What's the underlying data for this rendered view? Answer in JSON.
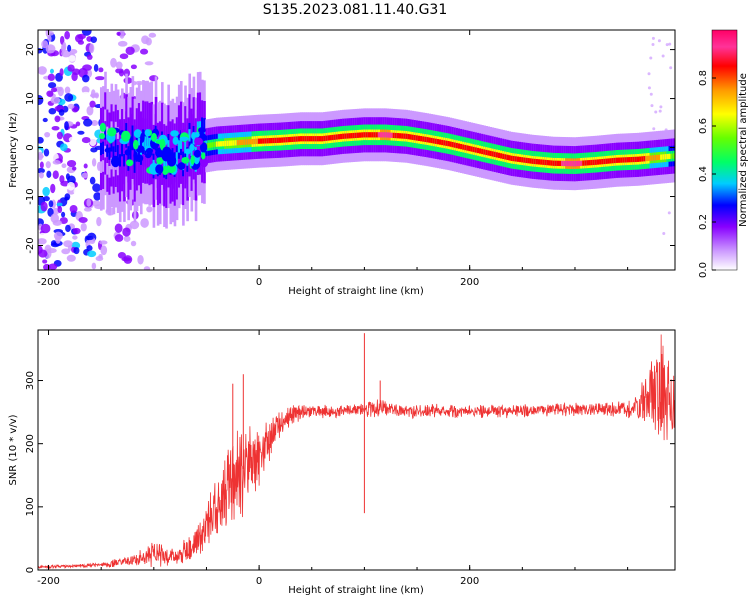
{
  "figure": {
    "title": "S135.2023.081.11.40.G31"
  },
  "chart_data": [
    {
      "type": "heatmap",
      "xlabel": "Height of straight line (km)",
      "ylabel": "Frequency (Hz)",
      "xlim": [
        -210,
        395
      ],
      "ylim": [
        -25,
        24
      ],
      "x_ticks": [
        -200,
        0,
        200
      ],
      "y_ticks": [
        -20,
        -10,
        0,
        10,
        20
      ],
      "colorbar": {
        "label": "Normalized spectral amplitude",
        "range": [
          0,
          1
        ],
        "ticks": [
          "0.0",
          "0.2",
          "0.4",
          "0.6",
          "0.8"
        ],
        "tick_values": [
          0,
          0.2,
          0.4,
          0.6,
          0.8
        ],
        "colormap": [
          "#ffffff",
          "#cc99ff",
          "#8800ff",
          "#0000ff",
          "#00ccff",
          "#00ff66",
          "#66ff00",
          "#ffff00",
          "#ff9900",
          "#ff0000",
          "#ff3399",
          "#ff0066"
        ]
      },
      "ridge": {
        "x": [
          -150,
          -120,
          -100,
          -80,
          -60,
          -40,
          -20,
          0,
          20,
          40,
          60,
          80,
          100,
          120,
          140,
          160,
          180,
          200,
          220,
          240,
          260,
          280,
          300,
          320,
          340,
          360,
          380,
          395
        ],
        "freq": [
          0.5,
          0.0,
          -1.0,
          -1.0,
          0.0,
          0.7,
          1.0,
          1.3,
          1.5,
          1.8,
          1.8,
          2.3,
          2.6,
          2.6,
          2.3,
          1.6,
          0.8,
          -0.2,
          -1.2,
          -2.2,
          -2.8,
          -3.2,
          -3.3,
          -3.0,
          -2.6,
          -2.4,
          -2.0,
          -1.7
        ],
        "amplitude": [
          0.3,
          0.35,
          0.4,
          0.4,
          0.45,
          0.65,
          0.75,
          0.85,
          0.85,
          0.88,
          0.88,
          0.88,
          0.9,
          0.95,
          0.9,
          0.85,
          0.85,
          0.85,
          0.85,
          0.88,
          0.9,
          0.92,
          0.95,
          0.9,
          0.92,
          0.9,
          0.75,
          0.6
        ]
      },
      "noise_region_km": [
        -210,
        -100
      ]
    },
    {
      "type": "line",
      "color": "#ee3333",
      "xlabel": "Height of straight line (km)",
      "ylabel": "SNR (10 * v/v)",
      "xlim": [
        -210,
        395
      ],
      "ylim": [
        0,
        380
      ],
      "x_ticks": [
        -200,
        0,
        200
      ],
      "y_ticks": [
        0,
        100,
        200,
        300
      ],
      "series": [
        {
          "x": [
            -210,
            -180,
            -150,
            -120,
            -100,
            -80,
            -60,
            -50,
            -40,
            -30,
            -20,
            -10,
            0,
            10,
            20,
            30,
            40,
            60,
            80,
            100,
            110,
            120,
            140,
            160,
            200,
            250,
            300,
            350,
            360,
            370,
            380,
            385,
            390,
            395
          ],
          "values": [
            5,
            6,
            8,
            15,
            25,
            20,
            40,
            70,
            100,
            130,
            150,
            170,
            180,
            210,
            230,
            245,
            250,
            252,
            252,
            255,
            260,
            255,
            250,
            252,
            252,
            252,
            255,
            255,
            260,
            270,
            280,
            275,
            265,
            240
          ],
          "spread": [
            3,
            3,
            5,
            10,
            25,
            15,
            30,
            45,
            60,
            80,
            90,
            70,
            60,
            40,
            25,
            20,
            15,
            12,
            12,
            12,
            25,
            15,
            12,
            12,
            12,
            12,
            12,
            15,
            25,
            60,
            100,
            100,
            80,
            60
          ]
        }
      ],
      "spikes": [
        {
          "x": -25,
          "value": 295
        },
        {
          "x": -15,
          "value": 310
        },
        {
          "x": 100,
          "value": 375
        },
        {
          "x": 100,
          "value": 90
        },
        {
          "x": 115,
          "value": 300
        }
      ]
    }
  ]
}
